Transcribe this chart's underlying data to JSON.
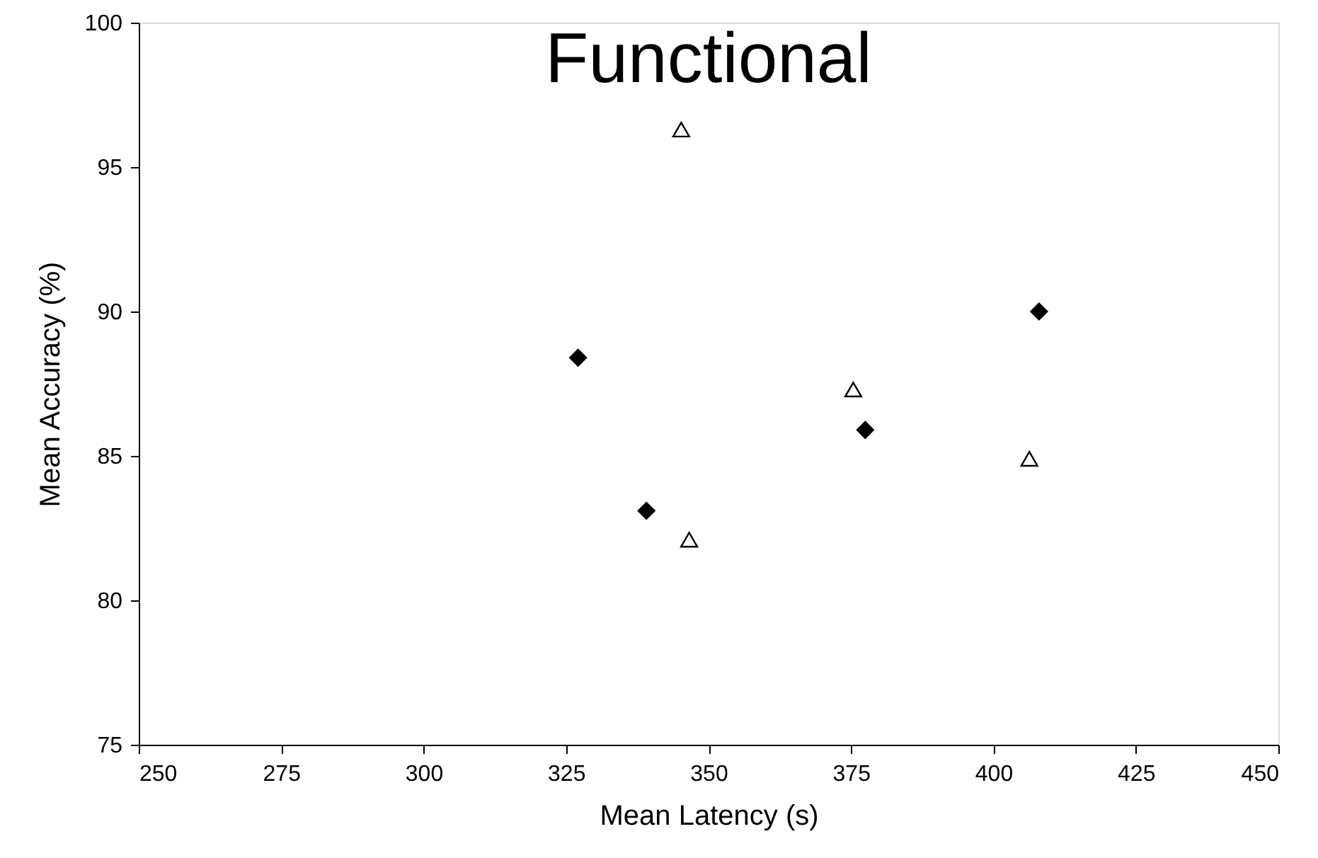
{
  "chart_data": {
    "type": "scatter",
    "title": "Functional",
    "xlabel": "Mean Latency (s)",
    "ylabel": "Mean Accuracy (%)",
    "xlim": [
      250,
      450
    ],
    "xticks": [
      250,
      275,
      300,
      325,
      350,
      375,
      400,
      425,
      450
    ],
    "ylim": [
      75,
      100
    ],
    "yticks": [
      75,
      80,
      85,
      90,
      95,
      100
    ],
    "grid": false,
    "series": [
      {
        "color": "#000000",
        "marker": "diamond",
        "x": [
          327.1,
          339.1,
          377.5,
          408.0
        ],
        "values": [
          88.4,
          83.1,
          85.9,
          90.0
        ]
      },
      {
        "color": "#ffffff",
        "marker": "triangle",
        "x": [
          345.2,
          346.6,
          375.4,
          406.3
        ],
        "values": [
          96.3,
          82.1,
          87.3,
          84.9
        ]
      }
    ]
  }
}
